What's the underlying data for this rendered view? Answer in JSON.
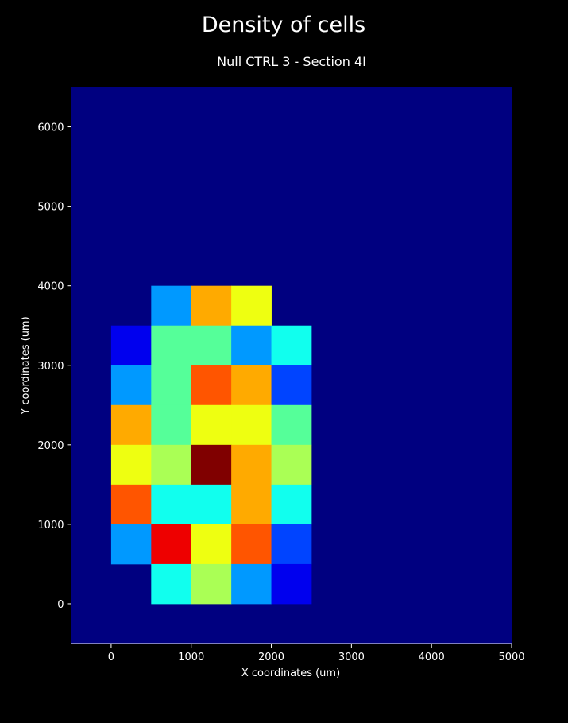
{
  "figure": {
    "background": "#000000",
    "suptitle": "Density of cells",
    "subtitle": "Null CTRL 3 - Section 4I"
  },
  "chart_data": {
    "type": "heatmap",
    "title": "Null CTRL 3 - Section 4I",
    "xlabel": "X coordinates (um)",
    "ylabel": "Y coordinates (um)",
    "xlim": [
      -500,
      5000
    ],
    "ylim": [
      -500,
      6500
    ],
    "xticks": [
      0,
      1000,
      2000,
      3000,
      4000,
      5000
    ],
    "yticks": [
      0,
      1000,
      2000,
      3000,
      4000,
      5000,
      6000
    ],
    "grid": false,
    "legend": "none",
    "colormap": "jet",
    "background_cell_color": "#000080",
    "bin_size": 500,
    "cells": [
      {
        "x": 500,
        "y": 3500,
        "color": "#0099ff"
      },
      {
        "x": 1000,
        "y": 3500,
        "color": "#ffaa00"
      },
      {
        "x": 1500,
        "y": 3500,
        "color": "#eeff11"
      },
      {
        "x": 0,
        "y": 3000,
        "color": "#0000ee"
      },
      {
        "x": 500,
        "y": 3000,
        "color": "#55ff99"
      },
      {
        "x": 1000,
        "y": 3000,
        "color": "#55ff99"
      },
      {
        "x": 1500,
        "y": 3000,
        "color": "#0099ff"
      },
      {
        "x": 2000,
        "y": 3000,
        "color": "#11ffee"
      },
      {
        "x": 0,
        "y": 2500,
        "color": "#0099ff"
      },
      {
        "x": 500,
        "y": 2500,
        "color": "#55ff99"
      },
      {
        "x": 1000,
        "y": 2500,
        "color": "#ff5500"
      },
      {
        "x": 1500,
        "y": 2500,
        "color": "#ffaa00"
      },
      {
        "x": 2000,
        "y": 2500,
        "color": "#0044ff"
      },
      {
        "x": 0,
        "y": 2000,
        "color": "#ffaa00"
      },
      {
        "x": 500,
        "y": 2000,
        "color": "#55ff99"
      },
      {
        "x": 1000,
        "y": 2000,
        "color": "#eeff11"
      },
      {
        "x": 1500,
        "y": 2000,
        "color": "#eeff11"
      },
      {
        "x": 2000,
        "y": 2000,
        "color": "#55ff99"
      },
      {
        "x": 0,
        "y": 1500,
        "color": "#eeff11"
      },
      {
        "x": 500,
        "y": 1500,
        "color": "#aaff55"
      },
      {
        "x": 1000,
        "y": 1500,
        "color": "#800000"
      },
      {
        "x": 1500,
        "y": 1500,
        "color": "#ffaa00"
      },
      {
        "x": 2000,
        "y": 1500,
        "color": "#aaff55"
      },
      {
        "x": 0,
        "y": 1000,
        "color": "#ff5500"
      },
      {
        "x": 500,
        "y": 1000,
        "color": "#11ffee"
      },
      {
        "x": 1000,
        "y": 1000,
        "color": "#11ffee"
      },
      {
        "x": 1500,
        "y": 1000,
        "color": "#ffaa00"
      },
      {
        "x": 2000,
        "y": 1000,
        "color": "#11ffee"
      },
      {
        "x": 0,
        "y": 500,
        "color": "#0099ff"
      },
      {
        "x": 500,
        "y": 500,
        "color": "#ee0000"
      },
      {
        "x": 1000,
        "y": 500,
        "color": "#eeff11"
      },
      {
        "x": 1500,
        "y": 500,
        "color": "#ff5500"
      },
      {
        "x": 2000,
        "y": 500,
        "color": "#0044ff"
      },
      {
        "x": 500,
        "y": 0,
        "color": "#11ffee"
      },
      {
        "x": 1000,
        "y": 0,
        "color": "#aaff55"
      },
      {
        "x": 1500,
        "y": 0,
        "color": "#0099ff"
      },
      {
        "x": 2000,
        "y": 0,
        "color": "#0000ee"
      }
    ]
  }
}
